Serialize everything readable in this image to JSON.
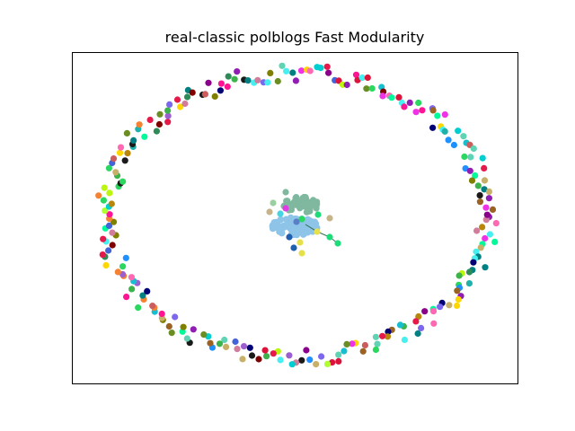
{
  "figure": {
    "title": "real-classic polblogs Fast Modularity"
  },
  "graph": {
    "ring_colors": [
      "#e6194b",
      "#3cb44b",
      "#4363d8",
      "#f58231",
      "#911eb4",
      "#46f0f0",
      "#f032e6",
      "#bcf60c",
      "#008080",
      "#9a6324",
      "#800000",
      "#808000",
      "#000075",
      "#1a1a1a",
      "#5fd3b3",
      "#2ad860",
      "#9c5fd0",
      "#d17c9a",
      "#17becf",
      "#c8b06a",
      "#ff69b4",
      "#6b8e23",
      "#20b2aa",
      "#dc143c",
      "#7b68ee",
      "#00ced1",
      "#2e8b57",
      "#b8860b",
      "#ff1493",
      "#1e90ff",
      "#ffd700",
      "#adff2f",
      "#cd5c5c",
      "#00fa9a",
      "#8b008b"
    ],
    "core_blue": "#8ec4e8",
    "core_green": "#7fb89e",
    "core_nodes": [
      {
        "c": "#1f5fae"
      },
      {
        "c": "#1f5fae"
      },
      {
        "c": "#e6e04a"
      },
      {
        "c": "#e6e04a"
      },
      {
        "c": "#e6e04a"
      },
      {
        "c": "#1ddc7a"
      },
      {
        "c": "#1ddc7a"
      },
      {
        "c": "#1ddc7a"
      },
      {
        "c": "#c8b48a"
      },
      {
        "c": "#c8b48a"
      },
      {
        "c": "#e23be6"
      },
      {
        "c": "#2ad860"
      },
      {
        "c": "#5a7fc9"
      },
      {
        "c": "#9ad0a0"
      },
      {
        "c": "#46d4e0"
      }
    ]
  }
}
